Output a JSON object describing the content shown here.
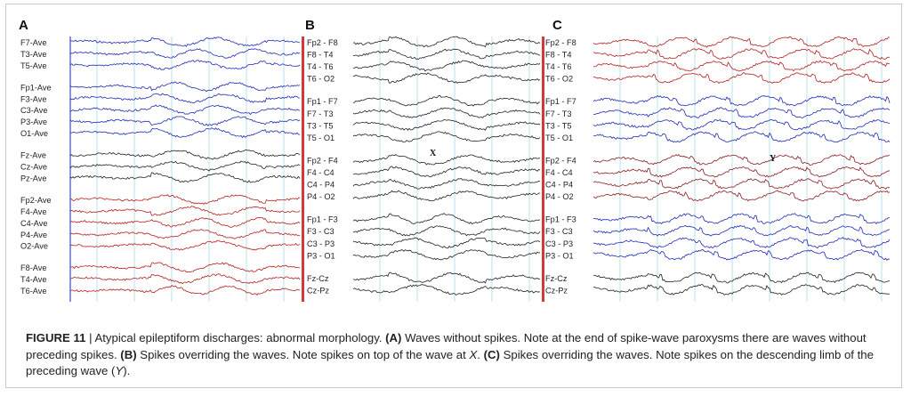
{
  "panels": [
    {
      "letter": "A",
      "groups": [
        {
          "color": "#1f2bb5",
          "labels": [
            "F7-Ave",
            "T3-Ave",
            "T5-Ave"
          ]
        },
        {
          "color": "#1f2bb5",
          "labels": [
            "Fp1-Ave",
            "F3-Ave",
            "C3-Ave",
            "P3-Ave",
            "O1-Ave"
          ]
        },
        {
          "color": "#222222",
          "labels": [
            "Fz-Ave",
            "Cz-Ave",
            "Pz-Ave"
          ]
        },
        {
          "color": "#b51f1f",
          "labels": [
            "Fp2-Ave",
            "F4-Ave",
            "C4-Ave",
            "P4-Ave",
            "O2-Ave"
          ]
        },
        {
          "color": "#b51f1f",
          "labels": [
            "F8-Ave",
            "T4-Ave",
            "T6-Ave"
          ]
        }
      ]
    },
    {
      "letter": "B",
      "annotation": "X",
      "groups": [
        {
          "color": "#222222",
          "labels": [
            "Fp2 - F8",
            "F8 - T4",
            "T4 - T6",
            "T6 - O2"
          ]
        },
        {
          "color": "#222222",
          "labels": [
            "Fp1 - F7",
            "F7 - T3",
            "T3 - T5",
            "T5 - O1"
          ]
        },
        {
          "color": "#222222",
          "labels": [
            "Fp2 - F4",
            "F4 - C4",
            "C4 - P4",
            "P4 - O2"
          ]
        },
        {
          "color": "#222222",
          "labels": [
            "Fp1 - F3",
            "F3 - C3",
            "C3 - P3",
            "P3 - O1"
          ]
        },
        {
          "color": "#222222",
          "labels": [
            "Fz-Cz",
            "Cz-Pz"
          ]
        }
      ]
    },
    {
      "letter": "C",
      "annotation": "Y",
      "groups": [
        {
          "color": "#b51f1f",
          "labels": [
            "Fp2 - F8",
            "F8 - T4",
            "T4 - T6",
            "T6 - O2"
          ]
        },
        {
          "color": "#1f2bb5",
          "labels": [
            "Fp1 - F7",
            "F7 - T3",
            "T3 - T5",
            "T5 - O1"
          ]
        },
        {
          "color": "#8a1e1e",
          "labels": [
            "Fp2 - F4",
            "F4 - C4",
            "C4 - P4",
            "P4 - O2"
          ]
        },
        {
          "color": "#1f2bb5",
          "labels": [
            "Fp1 - F3",
            "F3 - C3",
            "C3 - P3",
            "P3 - O1"
          ]
        },
        {
          "color": "#222222",
          "labels": [
            "Fz-Cz",
            "Cz-Pz"
          ]
        }
      ]
    }
  ],
  "caption": {
    "figure_label": "FIGURE 11",
    "separator": " | ",
    "intro": "Atypical epileptiform discharges: abnormal morphology. ",
    "a_label": "(A)",
    "a_text": " Waves without spikes. Note at the end of spike-wave paroxysms there are waves without preceding spikes. ",
    "b_label": "(B)",
    "b_text": " Spikes overriding the waves. Note spikes on top of the wave at ",
    "b_ref": "X",
    "b_end": ". ",
    "c_label": "(C)",
    "c_text": " Spikes overriding the waves. Note spikes on the descending limb of the preceding wave (",
    "c_ref": "Y",
    "c_end": ")."
  }
}
